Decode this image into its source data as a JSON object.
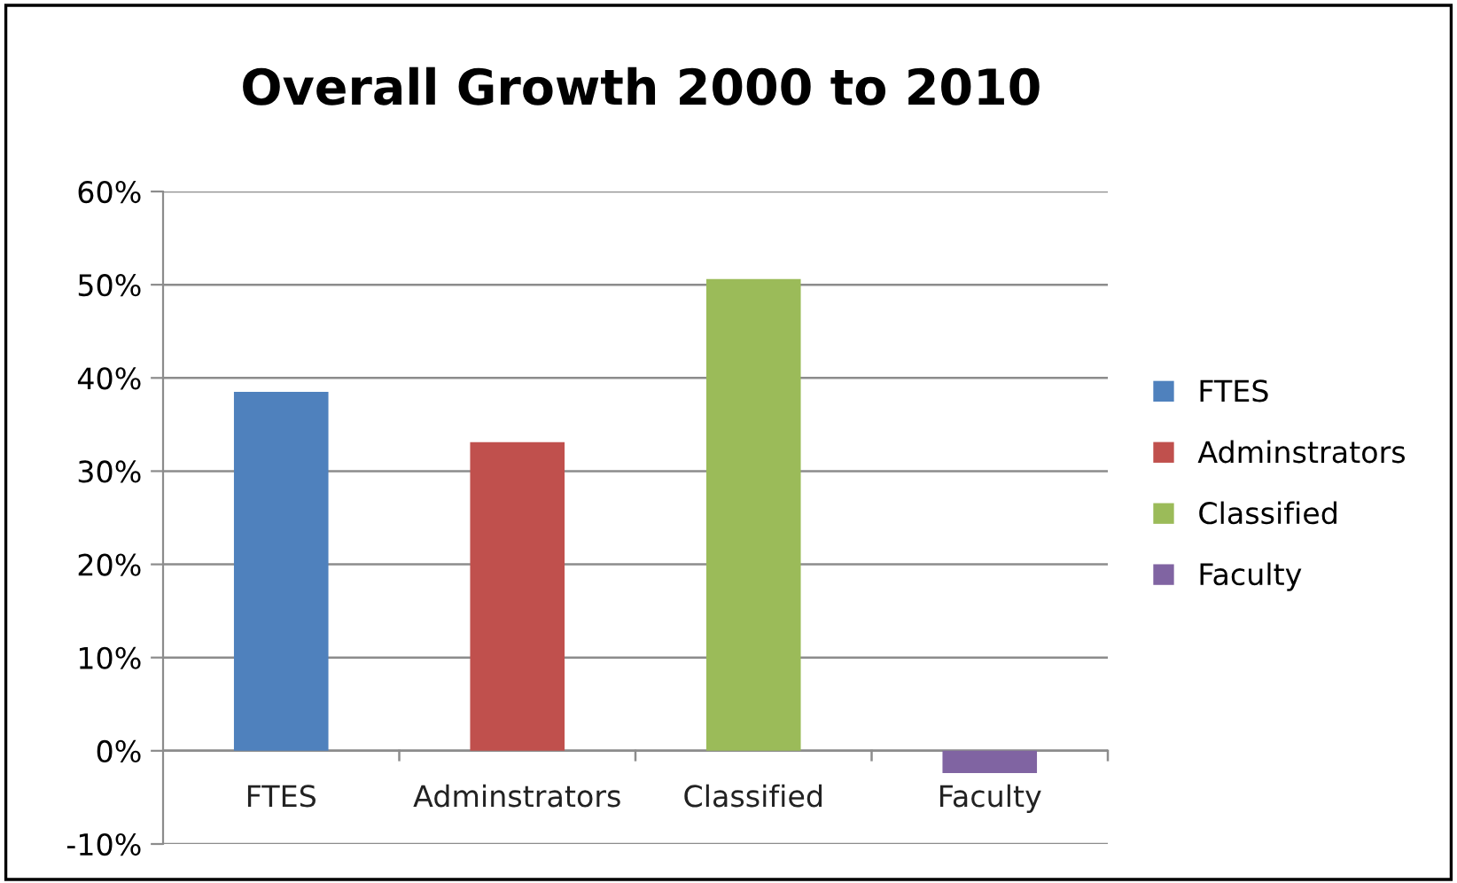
{
  "chart_data": {
    "type": "bar",
    "title": "Overall Growth 2000 to 2010",
    "categories": [
      "FTES",
      "Adminstrators",
      "Classified",
      "Faculty"
    ],
    "series": [
      {
        "name": "FTES",
        "color": "#4f81bd",
        "values": [
          38.5,
          null,
          null,
          null
        ]
      },
      {
        "name": "Adminstrators",
        "color": "#c0504d",
        "values": [
          null,
          33.1,
          null,
          null
        ]
      },
      {
        "name": "Classified",
        "color": "#9bbb59",
        "values": [
          null,
          null,
          50.6,
          null
        ]
      },
      {
        "name": "Faculty",
        "color": "#8064a2",
        "values": [
          null,
          null,
          null,
          -2.4
        ]
      }
    ],
    "ylim": [
      -10,
      60
    ],
    "yticks": [
      {
        "value": -10,
        "label": "-10%"
      },
      {
        "value": 0,
        "label": "0%"
      },
      {
        "value": 10,
        "label": "10%"
      },
      {
        "value": 20,
        "label": "20%"
      },
      {
        "value": 30,
        "label": "30%"
      },
      {
        "value": 40,
        "label": "40%"
      },
      {
        "value": 50,
        "label": "50%"
      },
      {
        "value": 60,
        "label": "60%"
      }
    ],
    "grid": "y",
    "legend": "right"
  }
}
